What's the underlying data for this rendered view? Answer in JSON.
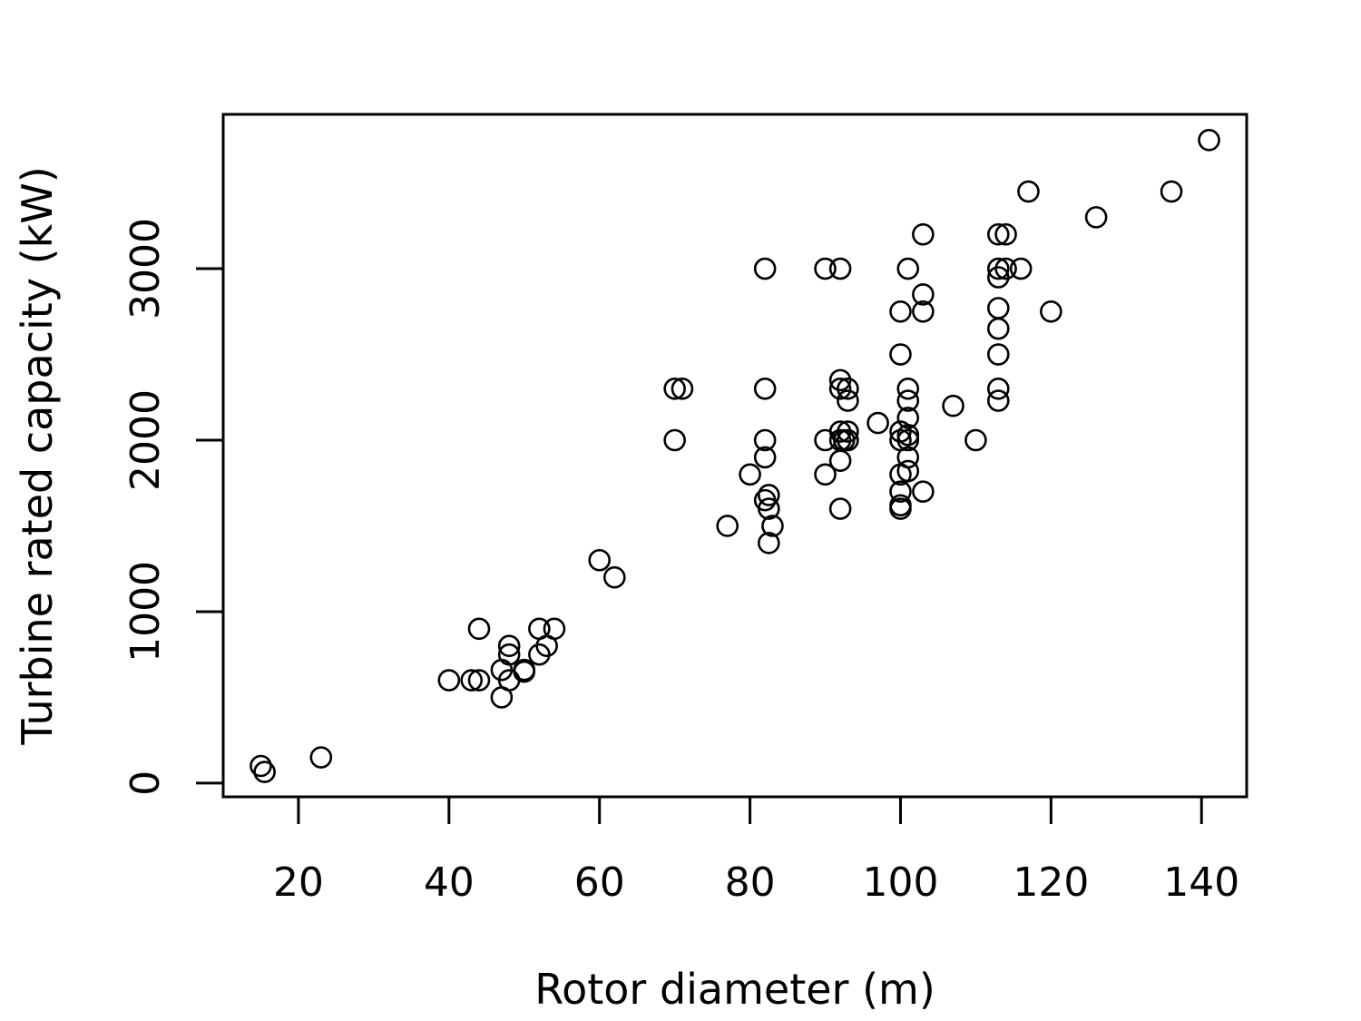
{
  "chart_data": {
    "type": "scatter",
    "title": "",
    "xlabel": "Rotor diameter (m)",
    "ylabel": "Turbine rated capacity (kW)",
    "xlim": [
      10,
      146
    ],
    "ylim": [
      -80,
      3900
    ],
    "xticks": [
      20,
      40,
      60,
      80,
      100,
      120,
      140
    ],
    "yticks": [
      0,
      1000,
      2000,
      3000
    ],
    "grid": false,
    "marker": "open-circle",
    "points": [
      [
        15,
        100
      ],
      [
        15.5,
        65
      ],
      [
        23,
        150
      ],
      [
        40,
        600
      ],
      [
        43,
        600
      ],
      [
        44,
        600
      ],
      [
        44,
        900
      ],
      [
        47,
        500
      ],
      [
        47,
        660
      ],
      [
        48,
        600
      ],
      [
        48,
        750
      ],
      [
        48,
        800
      ],
      [
        50,
        660
      ],
      [
        50,
        650
      ],
      [
        52,
        750
      ],
      [
        52,
        900
      ],
      [
        53,
        800
      ],
      [
        54,
        900
      ],
      [
        60,
        1300
      ],
      [
        62,
        1200
      ],
      [
        70,
        2000
      ],
      [
        70,
        2300
      ],
      [
        71,
        2300
      ],
      [
        77,
        1500
      ],
      [
        80,
        1800
      ],
      [
        82,
        1650
      ],
      [
        82,
        1900
      ],
      [
        82,
        2000
      ],
      [
        82,
        2300
      ],
      [
        82,
        3000
      ],
      [
        82.5,
        1400
      ],
      [
        82.5,
        1600
      ],
      [
        82.5,
        1680
      ],
      [
        83,
        1500
      ],
      [
        90,
        1800
      ],
      [
        90,
        2000
      ],
      [
        90,
        3000
      ],
      [
        92,
        1600
      ],
      [
        92,
        1880
      ],
      [
        92,
        2000
      ],
      [
        92,
        2050
      ],
      [
        92,
        2300
      ],
      [
        92,
        2350
      ],
      [
        92,
        3000
      ],
      [
        92.5,
        2000
      ],
      [
        93,
        2000
      ],
      [
        93,
        2050
      ],
      [
        93,
        2230
      ],
      [
        93,
        2300
      ],
      [
        97,
        2100
      ],
      [
        100,
        1600
      ],
      [
        100,
        1620
      ],
      [
        100,
        1700
      ],
      [
        100,
        1800
      ],
      [
        100,
        2000
      ],
      [
        100,
        2050
      ],
      [
        100,
        2500
      ],
      [
        100,
        2750
      ],
      [
        101,
        1820
      ],
      [
        101,
        1900
      ],
      [
        101,
        2000
      ],
      [
        101,
        2030
      ],
      [
        101,
        2130
      ],
      [
        101,
        2230
      ],
      [
        101,
        2300
      ],
      [
        101,
        3000
      ],
      [
        103,
        1700
      ],
      [
        103,
        2750
      ],
      [
        103,
        2850
      ],
      [
        103,
        3200
      ],
      [
        107,
        2200
      ],
      [
        110,
        2000
      ],
      [
        113,
        2230
      ],
      [
        113,
        2300
      ],
      [
        113,
        2500
      ],
      [
        113,
        2650
      ],
      [
        113,
        2770
      ],
      [
        113,
        2950
      ],
      [
        113,
        3000
      ],
      [
        113,
        3200
      ],
      [
        114,
        3000
      ],
      [
        114,
        3200
      ],
      [
        116,
        3000
      ],
      [
        117,
        3450
      ],
      [
        120,
        2750
      ],
      [
        126,
        3300
      ],
      [
        136,
        3450
      ],
      [
        141,
        3750
      ]
    ]
  }
}
